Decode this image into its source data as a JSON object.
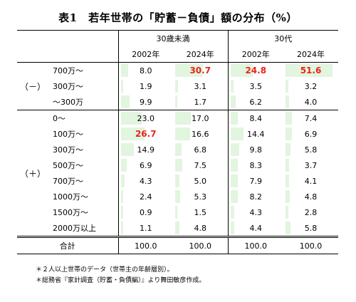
{
  "title": "表1　若年世帯の「貯蓄－負債」額の分布（%）",
  "header": {
    "group1": "30歳未満",
    "group2": "30代",
    "years": [
      "2002年",
      "2024年",
      "2002年",
      "2024年"
    ]
  },
  "sections": [
    {
      "label": "（－）",
      "rows": [
        {
          "category": "700万～",
          "values": [
            "8.0",
            "30.7",
            "24.8",
            "51.6"
          ],
          "highlight": [
            false,
            true,
            true,
            true
          ]
        },
        {
          "category": "300万～",
          "values": [
            "1.9",
            "3.1",
            "3.5",
            "3.2"
          ],
          "highlight": [
            false,
            false,
            false,
            false
          ]
        },
        {
          "category": "～300万",
          "values": [
            "9.9",
            "1.7",
            "6.2",
            "4.0"
          ],
          "highlight": [
            false,
            false,
            false,
            false
          ]
        }
      ]
    },
    {
      "label": "（＋）",
      "rows": [
        {
          "category": "0～",
          "values": [
            "23.0",
            "17.0",
            "8.4",
            "7.4"
          ],
          "highlight": [
            false,
            false,
            false,
            false
          ]
        },
        {
          "category": "100万～",
          "values": [
            "26.7",
            "16.6",
            "14.4",
            "6.9"
          ],
          "highlight": [
            true,
            false,
            false,
            false
          ]
        },
        {
          "category": "300万～",
          "values": [
            "14.9",
            "6.8",
            "9.8",
            "5.8"
          ],
          "highlight": [
            false,
            false,
            false,
            false
          ]
        },
        {
          "category": "500万～",
          "values": [
            "6.9",
            "7.5",
            "8.3",
            "3.7"
          ],
          "highlight": [
            false,
            false,
            false,
            false
          ]
        },
        {
          "category": "700万～",
          "values": [
            "4.3",
            "5.0",
            "7.9",
            "4.1"
          ],
          "highlight": [
            false,
            false,
            false,
            false
          ]
        },
        {
          "category": "1000万～",
          "values": [
            "2.4",
            "5.3",
            "8.2",
            "4.8"
          ],
          "highlight": [
            false,
            false,
            false,
            false
          ]
        },
        {
          "category": "1500万～",
          "values": [
            "0.9",
            "1.5",
            "4.3",
            "2.8"
          ],
          "highlight": [
            false,
            false,
            false,
            false
          ]
        },
        {
          "category": "2000万以上",
          "values": [
            "1.1",
            "4.8",
            "4.4",
            "5.8"
          ],
          "highlight": [
            false,
            false,
            false,
            false
          ]
        }
      ]
    }
  ],
  "total": {
    "label": "合計",
    "values": [
      "100.0",
      "100.0",
      "100.0",
      "100.0"
    ]
  },
  "notes": [
    "＊２人以上世帯のデータ（世帯主の年齢層別）。",
    "＊総務省『家計調査（貯蓄・負債編）』より舞田敏彦作成。"
  ],
  "colors": {
    "highlight": "#e8241a",
    "bar": "#e2f5df"
  }
}
